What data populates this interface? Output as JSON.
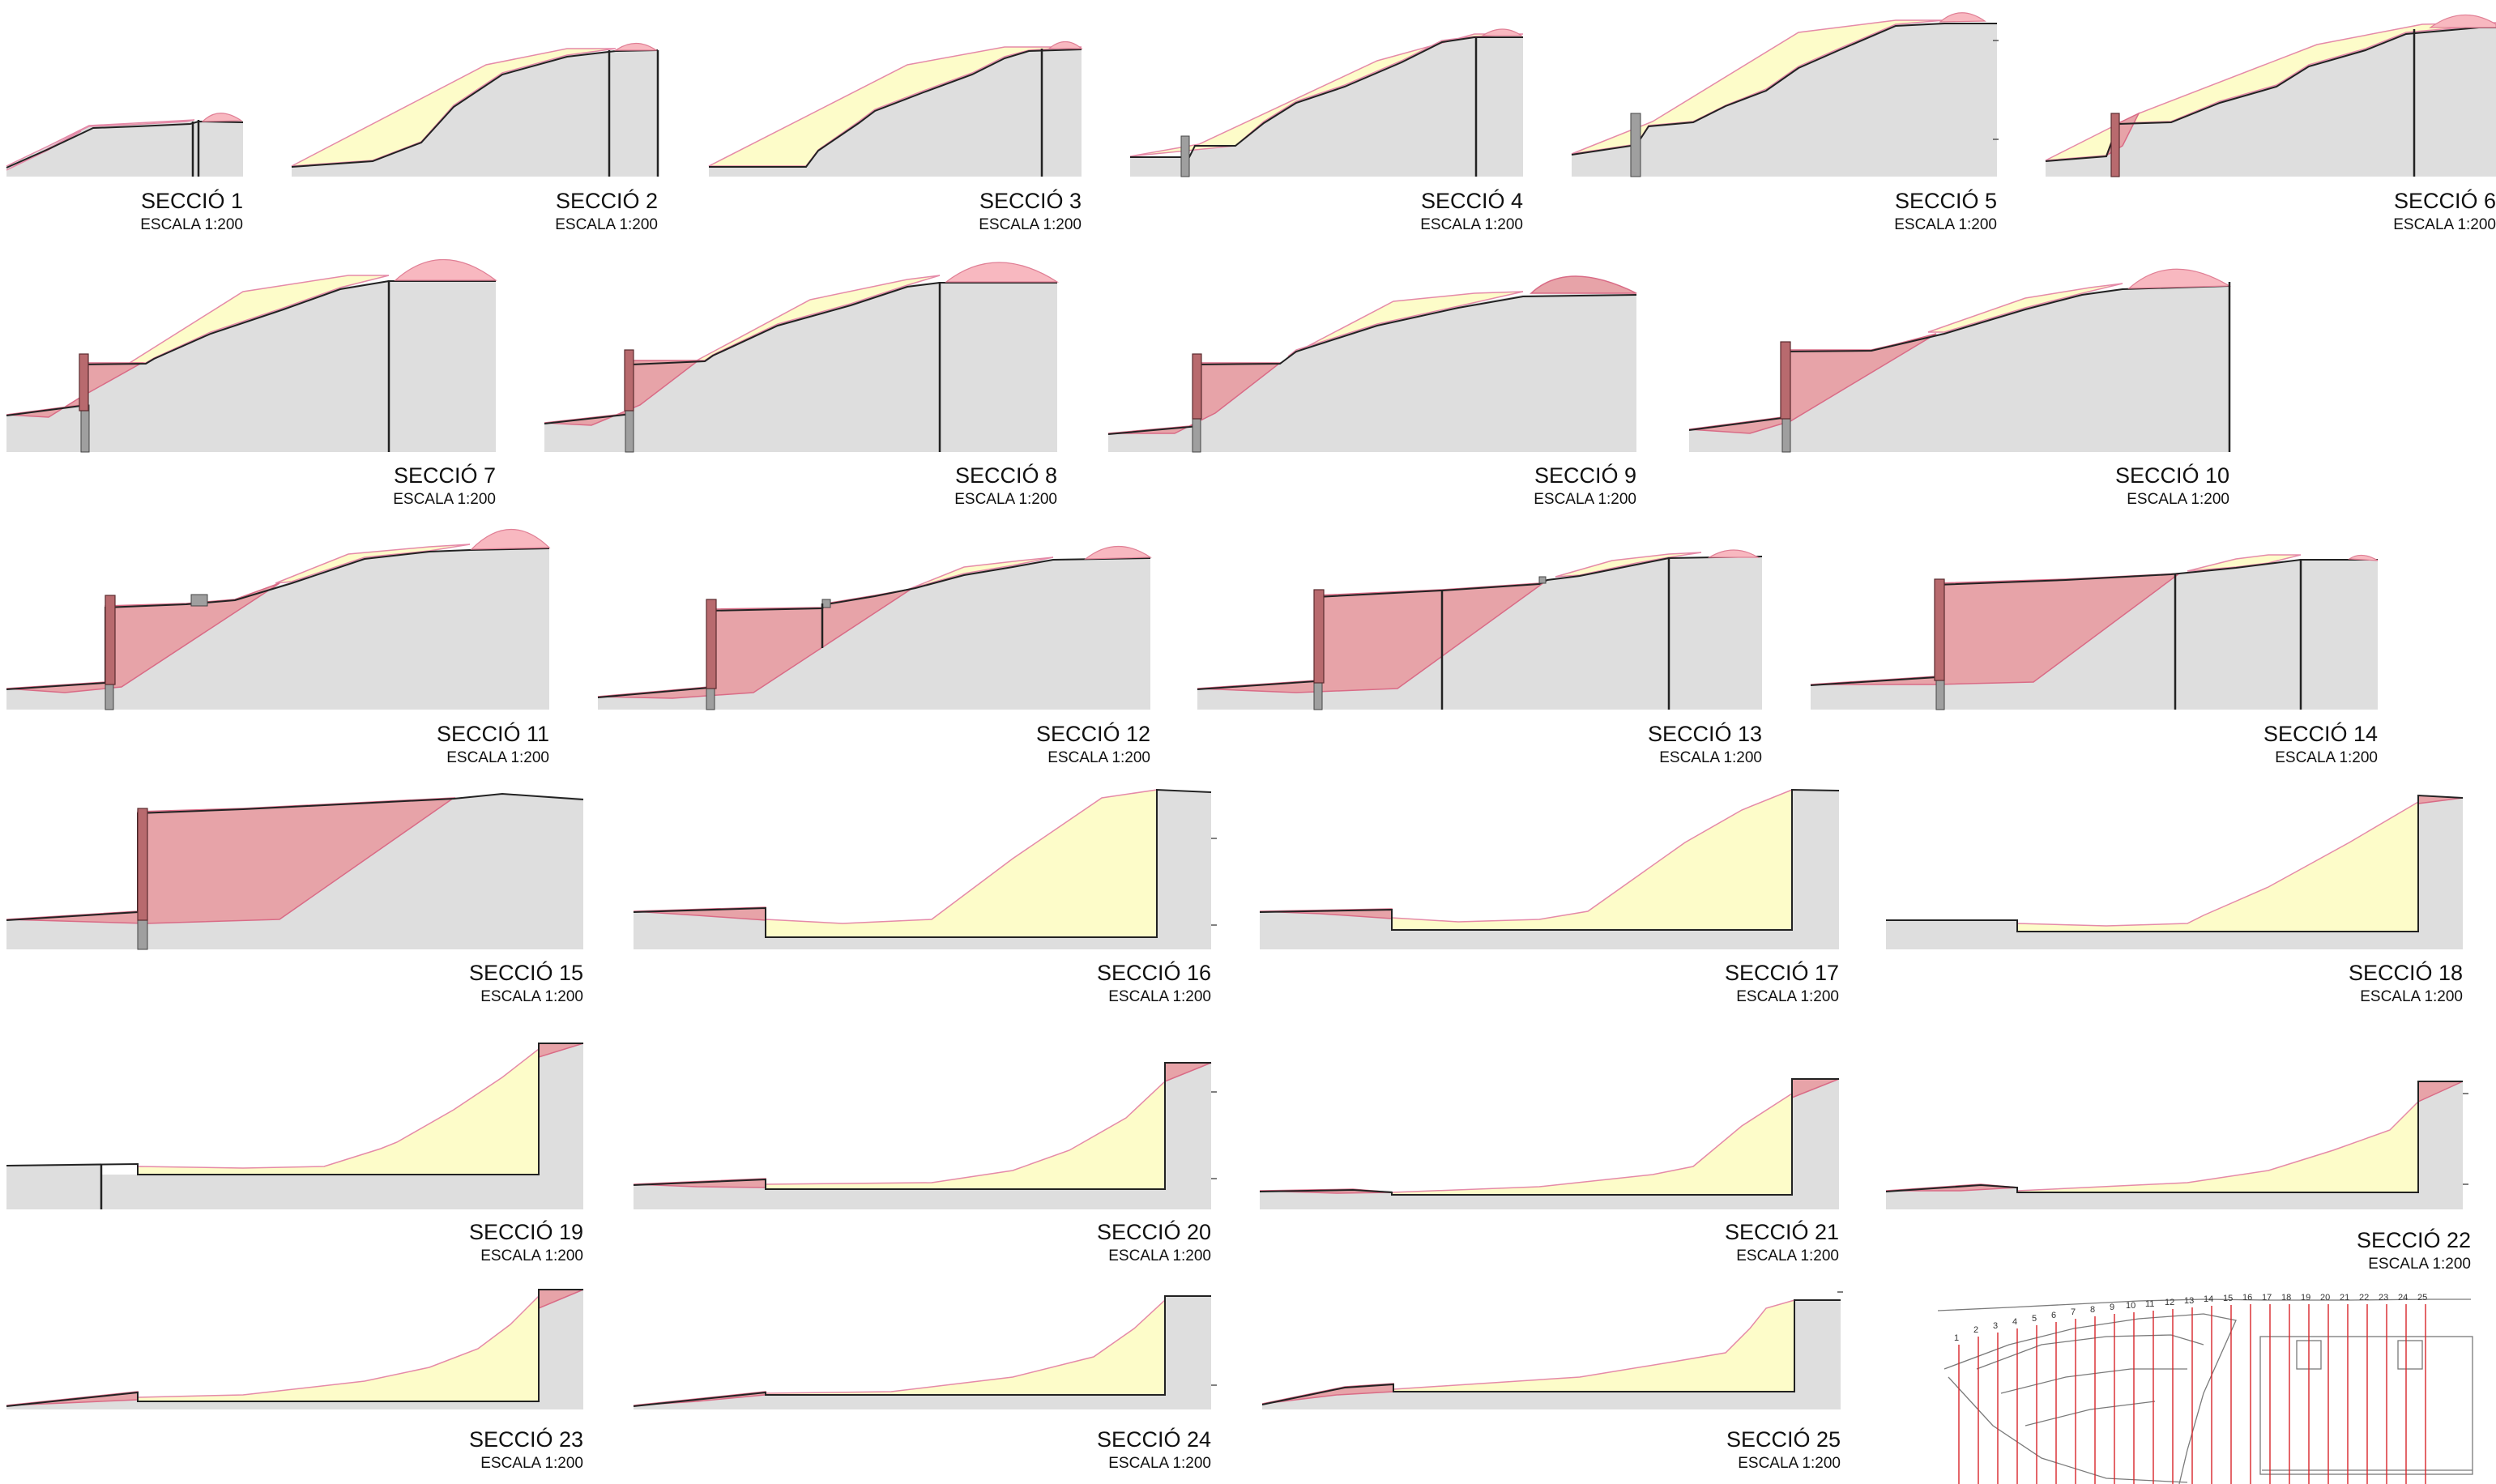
{
  "sections": [
    {
      "title": "SECCIÓ  1",
      "scale": "ESCALA 1:200"
    },
    {
      "title": "SECCIÓ  2",
      "scale": "ESCALA 1:200"
    },
    {
      "title": "SECCIÓ  3",
      "scale": "ESCALA 1:200"
    },
    {
      "title": "SECCIÓ  4",
      "scale": "ESCALA 1:200"
    },
    {
      "title": "SECCIÓ  5",
      "scale": "ESCALA 1:200"
    },
    {
      "title": "SECCIÓ  6",
      "scale": "ESCALA 1:200"
    },
    {
      "title": "SECCIÓ  7",
      "scale": "ESCALA 1:200"
    },
    {
      "title": "SECCIÓ 8",
      "scale": "ESCALA 1:200"
    },
    {
      "title": "SECCIÓ 9",
      "scale": "ESCALA 1:200"
    },
    {
      "title": "SECCIÓ  10",
      "scale": "ESCALA 1:200"
    },
    {
      "title": "SECCIÓ  11",
      "scale": "ESCALA 1:200"
    },
    {
      "title": "SECCIÓ  12",
      "scale": "ESCALA 1:200"
    },
    {
      "title": "SECCIÓ  13",
      "scale": "ESCALA 1:200"
    },
    {
      "title": "SECCIÓ 14",
      "scale": "ESCALA 1:200"
    },
    {
      "title": "SECCIÓ  15",
      "scale": "ESCALA 1:200"
    },
    {
      "title": "SECCIÓ  16",
      "scale": "ESCALA 1:200"
    },
    {
      "title": "SECCIÓ  17",
      "scale": "ESCALA 1:200"
    },
    {
      "title": "SECCIÓ  18",
      "scale": "ESCALA 1:200"
    },
    {
      "title": "SECCIÓ  19",
      "scale": "ESCALA 1:200"
    },
    {
      "title": "SECCIÓ  20",
      "scale": "ESCALA 1:200"
    },
    {
      "title": "SECCIÓ  21",
      "scale": "ESCALA 1:200"
    },
    {
      "title": "SECCIÓ  22",
      "scale": "ESCALA 1:200"
    },
    {
      "title": "SECCIÓ  23",
      "scale": "ESCALA 1:200"
    },
    {
      "title": "SECCIÓ  24",
      "scale": "ESCALA 1:200"
    },
    {
      "title": "SECCIÓ  25",
      "scale": "ESCALA 1:200"
    }
  ],
  "key_plan": {
    "section_numbers": [
      "1",
      "2",
      "3",
      "4",
      "5",
      "6",
      "7",
      "8",
      "9",
      "10",
      "11",
      "12",
      "13",
      "14",
      "15",
      "16",
      "17",
      "18",
      "19",
      "20",
      "21",
      "22",
      "23",
      "24",
      "25"
    ]
  },
  "colors": {
    "ground": "#dedede",
    "fill": "#fdfcc9",
    "cut": "#e7a3a8",
    "mound": "#f8b8c0",
    "section_line": "#d8262a"
  }
}
